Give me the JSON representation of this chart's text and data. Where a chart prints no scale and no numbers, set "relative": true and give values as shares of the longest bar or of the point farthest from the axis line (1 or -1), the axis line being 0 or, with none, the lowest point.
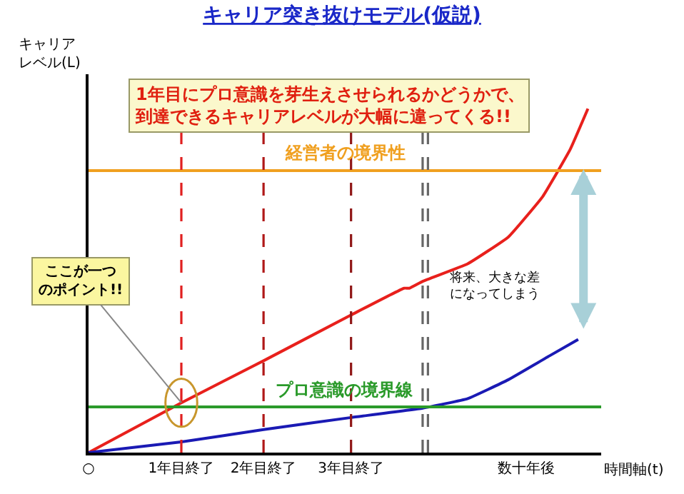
{
  "chart_data": {
    "type": "line",
    "relative": true,
    "title": "キャリア突き抜けモデル(仮説)",
    "ylabel": "キャリアレベル(L)",
    "xlabel": "時間軸(t)",
    "x": [
      0,
      1.05,
      1.98,
      2.97,
      3.57,
      3.63,
      3.78,
      4.29,
      4.75,
      5.14,
      5.45,
      5.65
    ],
    "xlim": [
      0,
      5.8
    ],
    "xticks": [
      {
        "value": 0,
        "label": "○"
      },
      {
        "value": 1.05,
        "label": "1年目終了"
      },
      {
        "value": 1.98,
        "label": "2年目終了"
      },
      {
        "value": 2.97,
        "label": "3年目終了"
      },
      {
        "value": 4.95,
        "label": "数十年後"
      }
    ],
    "tick_labels": "x",
    "legend": false,
    "marker": "none",
    "line_style": "solid",
    "series": [
      {
        "color": "#e8201c",
        "values": [
          0,
          0.145,
          0.267,
          0.4,
          0.478,
          0.478,
          0.498,
          0.549,
          0.627,
          0.745,
          0.882,
          1.0
        ]
      },
      {
        "color": "#1a1ab4",
        "x": [
          0,
          1.05,
          1.98,
          2.97,
          3.78,
          4.29,
          4.75,
          5.22,
          5.54
        ],
        "values": [
          0,
          0.031,
          0.067,
          0.102,
          0.129,
          0.157,
          0.212,
          0.282,
          0.329
        ]
      }
    ],
    "ref_lines": [
      {
        "axis": "y",
        "value": 0.82,
        "label": "経営者の境界性",
        "color": "#f0a020",
        "line_style": "solid"
      },
      {
        "axis": "y",
        "value": 0.133,
        "label": "プロ意識の境界線",
        "color": "#2a9a2a",
        "line_style": "solid"
      },
      {
        "axis": "x",
        "value": 1.05,
        "color": "#e02020",
        "line_style": "dashed"
      },
      {
        "axis": "x",
        "value": 1.98,
        "color": "#b01818",
        "line_style": "dashed"
      },
      {
        "axis": "x",
        "value": 2.97,
        "color": "#901818",
        "line_style": "dashed"
      },
      {
        "axis": "x",
        "value": 3.78,
        "color": "#666666",
        "line_style": "dashed"
      },
      {
        "axis": "x",
        "value": 3.84,
        "color": "#666666",
        "line_style": "dashed"
      }
    ],
    "annotations": [
      "1年目にプロ意識を芽生えさせられるかどうかで、到達できるキャリアレベルが大幅に違ってくる!!",
      {
        "text": "ここが一つのポイント!!",
        "x": 1.05,
        "y": 0.145
      },
      "将来、大きな差になってしまう"
    ]
  }
}
